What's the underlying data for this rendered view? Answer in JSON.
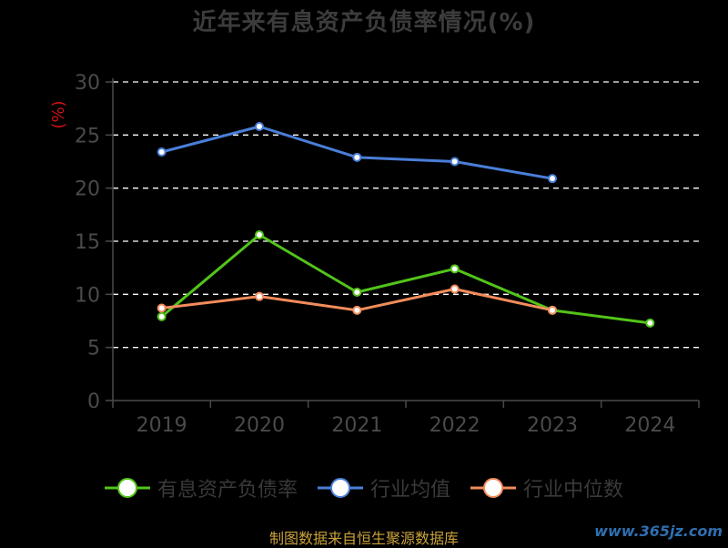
{
  "title": "近年来有息资产负债率情况(%)",
  "source": "制图数据来自恒生聚源数据库",
  "watermark": "www.365jz.com",
  "colors": {
    "background": "#000000",
    "title": "#3c3c3c",
    "axis": "#4a4a4a",
    "grid": "#ffffff",
    "unit": "#cc1111",
    "source": "#c9a13a"
  },
  "chart_data": {
    "type": "line",
    "title": "近年来有息资产负债率情况(%)",
    "ylabel": "(%)",
    "xlabel": "",
    "categories": [
      "2019",
      "2020",
      "2021",
      "2022",
      "2023",
      "2024"
    ],
    "ylim": [
      0,
      30
    ],
    "yticks": [
      0,
      5,
      10,
      15,
      20,
      25,
      30
    ],
    "grid": true,
    "legend_position": "bottom",
    "series": [
      {
        "name": "有息资产负债率",
        "color": "#52c41a",
        "values": [
          7.9,
          15.6,
          10.2,
          12.4,
          8.5,
          7.3
        ]
      },
      {
        "name": "行业均值",
        "color": "#4a7fd9",
        "values": [
          23.4,
          25.8,
          22.9,
          22.5,
          20.9,
          null
        ]
      },
      {
        "name": "行业中位数",
        "color": "#f28c5b",
        "values": [
          8.7,
          9.8,
          8.5,
          10.5,
          8.5,
          null
        ]
      }
    ]
  }
}
